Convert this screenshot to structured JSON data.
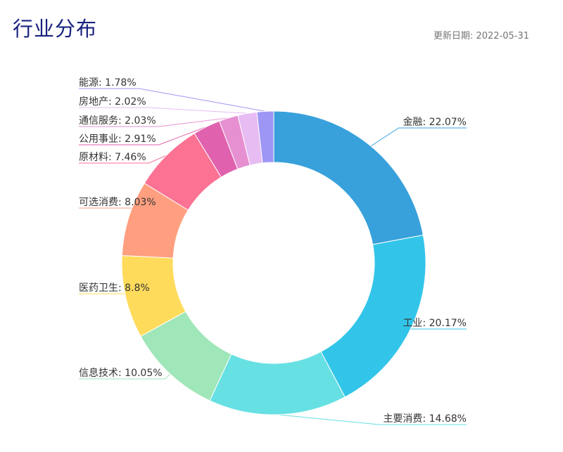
{
  "header": {
    "title": "行业分布",
    "update_label": "更新日期:",
    "update_date": "2022-05-31"
  },
  "chart_data": {
    "type": "pie",
    "variant": "donut",
    "legend": "none",
    "slices": [
      {
        "name": "金融",
        "value": 22.07,
        "label": "金融: 22.07%",
        "color": "#38a1db"
      },
      {
        "name": "工业",
        "value": 20.17,
        "label": "工业: 20.17%",
        "color": "#32c5e9"
      },
      {
        "name": "主要消费",
        "value": 14.68,
        "label": "主要消费: 14.68%",
        "color": "#67e0e3"
      },
      {
        "name": "信息技术",
        "value": 10.05,
        "label": "信息技术: 10.05%",
        "color": "#9fe6b8"
      },
      {
        "name": "医药卫生",
        "value": 8.8,
        "label": "医药卫生: 8.8%",
        "color": "#ffdb5c"
      },
      {
        "name": "可选消费",
        "value": 8.03,
        "label": "可选消费: 8.03%",
        "color": "#ff9f7f"
      },
      {
        "name": "原材料",
        "value": 7.46,
        "label": "原材料: 7.46%",
        "color": "#fb7293"
      },
      {
        "name": "公用事业",
        "value": 2.91,
        "label": "公用事业: 2.91%",
        "color": "#e062ae"
      },
      {
        "name": "通信服务",
        "value": 2.03,
        "label": "通信服务: 2.03%",
        "color": "#e690d1"
      },
      {
        "name": "房地产",
        "value": 2.02,
        "label": "房地产: 2.02%",
        "color": "#e7bcf3"
      },
      {
        "name": "能源",
        "value": 1.78,
        "label": "能源: 1.78%",
        "color": "#9d96f5"
      }
    ]
  }
}
